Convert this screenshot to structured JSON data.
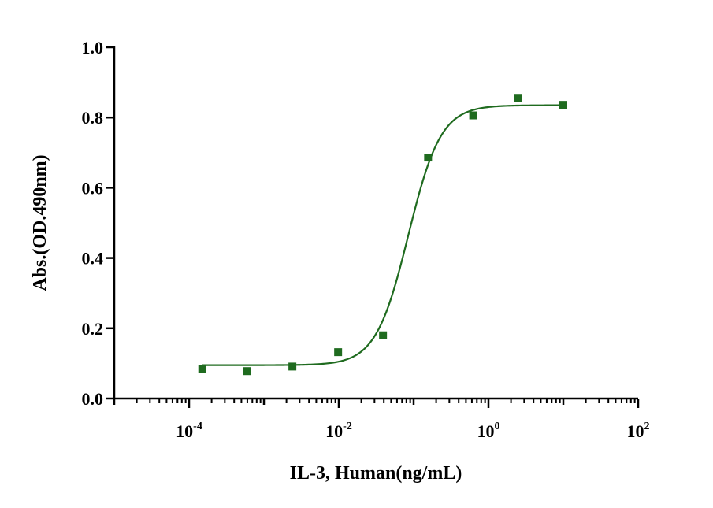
{
  "chart_data": {
    "type": "scatter",
    "title": "",
    "xlabel": "IL-3, Human(ng/mL)",
    "ylabel": "Abs.(OD.490nm)",
    "x_scale": "log10",
    "xlim": [
      1e-05,
      100
    ],
    "ylim": [
      0,
      1.0
    ],
    "grid": false,
    "legend": "none",
    "x_ticks": [
      {
        "base": "10",
        "exp": "-4"
      },
      {
        "base": "10",
        "exp": "-2"
      },
      {
        "base": "10",
        "exp": "0"
      },
      {
        "base": "10",
        "exp": "2"
      }
    ],
    "y_ticks": [
      "0.0",
      "0.2",
      "0.4",
      "0.6",
      "0.8",
      "1.0"
    ],
    "series": [
      {
        "color": "#1f6b1f",
        "marker": "square",
        "points": [
          {
            "x": 0.00015,
            "y": 0.085
          },
          {
            "x": 0.0006,
            "y": 0.078
          },
          {
            "x": 0.0024,
            "y": 0.091
          },
          {
            "x": 0.0098,
            "y": 0.132
          },
          {
            "x": 0.039,
            "y": 0.18
          },
          {
            "x": 0.156,
            "y": 0.686
          },
          {
            "x": 0.625,
            "y": 0.806
          },
          {
            "x": 2.5,
            "y": 0.856
          },
          {
            "x": 10,
            "y": 0.836
          }
        ],
        "fit": {
          "model": "4PL",
          "bottom": 0.095,
          "top": 0.835,
          "ec50": 0.085,
          "hill": 2.0
        }
      }
    ]
  }
}
